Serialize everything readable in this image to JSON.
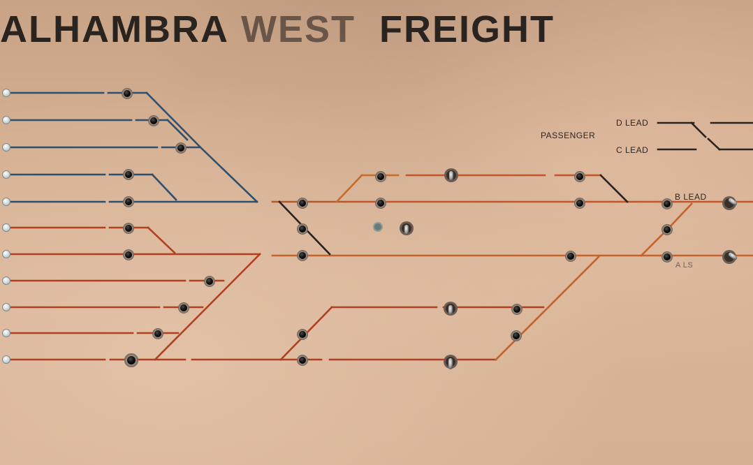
{
  "panel": {
    "title_words": [
      "ALHAMBRA",
      "WEST",
      "FREIGHT"
    ],
    "labels": {
      "passenger": "PASSENGER",
      "d_lead": "D LEAD",
      "c_lead": "C LEAD",
      "b_lead": "B LEAD",
      "a_lead": "A LS"
    },
    "colors": {
      "panel_background": "#d2ab8c",
      "blue_track": "#2f4f6f",
      "red_track": "#b0411f",
      "orange_track": "#c86a2a",
      "dark_track": "#2a2421",
      "indicator_light": "#6a7a7a"
    }
  }
}
